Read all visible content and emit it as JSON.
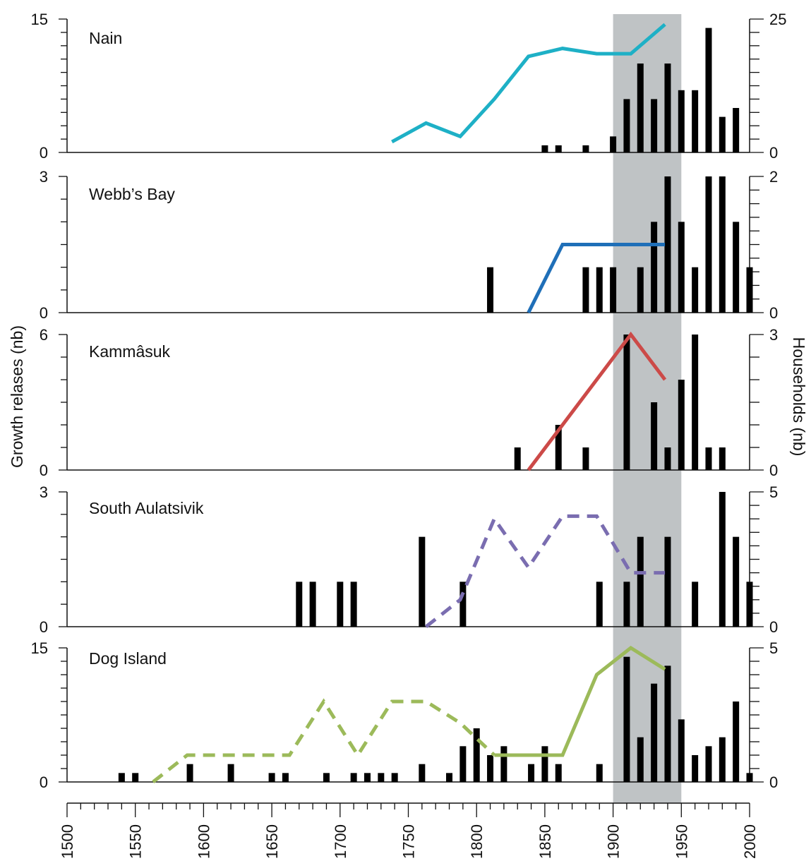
{
  "chart_data": {
    "type": "bar",
    "ylabel_left": "Growth relases (nb)",
    "ylabel_right": "Households (nb)",
    "x_ticks": [
      1500,
      1550,
      1600,
      1650,
      1700,
      1750,
      1800,
      1850,
      1900,
      1950,
      2000
    ],
    "xlim": [
      1500,
      2000
    ],
    "highlight_range": [
      1900,
      1950
    ],
    "highlight_color": "#bfc3c5",
    "panels": [
      {
        "title": "Nain",
        "left_ylim": [
          0,
          15
        ],
        "right_ylim": [
          0,
          25
        ],
        "left_minor_step": 1.5,
        "right_minor_step": 2.5,
        "bars": {
          "x": [
            1850,
            1860,
            1880,
            1900,
            1910,
            1920,
            1930,
            1940,
            1950,
            1960,
            1970,
            1980,
            1990
          ],
          "values": [
            0.8,
            0.8,
            0.8,
            1.8,
            6,
            10,
            6,
            10,
            7,
            7,
            14,
            4,
            5
          ]
        },
        "series": [
          {
            "color": "#1eb0c6",
            "dashed": false,
            "x": [
              1738,
              1763,
              1788,
              1813,
              1838,
              1863,
              1888,
              1913,
              1938
            ],
            "values": [
              2,
              5.5,
              3,
              10,
              18,
              19.5,
              18.5,
              18.5,
              24
            ]
          }
        ]
      },
      {
        "title": "Webb’s Bay",
        "left_ylim": [
          0,
          3
        ],
        "right_ylim": [
          0,
          2
        ],
        "left_minor_step": 0.5,
        "right_minor_step": 0.2,
        "bars": {
          "x": [
            1810,
            1880,
            1890,
            1900,
            1920,
            1930,
            1940,
            1950,
            1960,
            1970,
            1980,
            1990,
            2000
          ],
          "values": [
            1,
            1,
            1,
            1,
            1,
            2,
            3,
            2,
            1,
            3,
            3,
            2,
            1
          ]
        },
        "series": [
          {
            "color": "#1f6fb8",
            "dashed": false,
            "x": [
              1838,
              1863,
              1938
            ],
            "values": [
              0,
              1,
              1
            ]
          }
        ]
      },
      {
        "title": "Kammâsuk",
        "left_ylim": [
          0,
          6
        ],
        "right_ylim": [
          0,
          3
        ],
        "left_minor_step": 1,
        "right_minor_step": 0.5,
        "bars": {
          "x": [
            1830,
            1860,
            1880,
            1910,
            1930,
            1940,
            1950,
            1960,
            1970,
            1980
          ],
          "values": [
            1,
            2,
            1,
            6,
            3,
            1,
            4,
            6,
            1,
            1
          ]
        },
        "series": [
          {
            "color": "#cc4a48",
            "dashed": false,
            "x": [
              1838,
              1913,
              1938
            ],
            "values": [
              0,
              3,
              2
            ]
          }
        ]
      },
      {
        "title": "South Aulatsivik",
        "left_ylim": [
          0,
          3
        ],
        "right_ylim": [
          0,
          5
        ],
        "left_minor_step": 0.5,
        "right_minor_step": 0.5,
        "bars": {
          "x": [
            1670,
            1680,
            1700,
            1710,
            1760,
            1790,
            1890,
            1910,
            1920,
            1940,
            1960,
            1980,
            1990,
            2000
          ],
          "values": [
            1,
            1,
            1,
            1,
            2,
            1,
            1,
            1,
            2,
            2,
            1,
            3,
            2,
            1
          ]
        },
        "series": [
          {
            "color": "#7a6db0",
            "dashed": true,
            "x": [
              1763,
              1788,
              1813,
              1838,
              1863,
              1888,
              1913,
              1938
            ],
            "values": [
              0,
              1,
              4,
              2.2,
              4.1,
              4.1,
              2,
              2
            ]
          }
        ]
      },
      {
        "title": "Dog Island",
        "left_ylim": [
          0,
          15
        ],
        "right_ylim": [
          0,
          5
        ],
        "left_minor_step": 1.5,
        "right_minor_step": 0.5,
        "bars": {
          "x": [
            1540,
            1550,
            1590,
            1620,
            1650,
            1660,
            1690,
            1710,
            1720,
            1730,
            1740,
            1760,
            1780,
            1790,
            1800,
            1810,
            1820,
            1840,
            1850,
            1860,
            1890,
            1910,
            1920,
            1930,
            1940,
            1950,
            1960,
            1970,
            1980,
            1990,
            2000
          ],
          "values": [
            1,
            1,
            2,
            2,
            1,
            1,
            1,
            1,
            1,
            1,
            1,
            2,
            1,
            4,
            6,
            3,
            4,
            2,
            4,
            2,
            2,
            14,
            5,
            11,
            13,
            7,
            3,
            4,
            5,
            9,
            1
          ]
        },
        "series": [
          {
            "color": "#9cba5a",
            "dashed": true,
            "x": [
              1563,
              1588,
              1613,
              1638,
              1663,
              1688,
              1713,
              1738,
              1763,
              1788,
              1813
            ],
            "values": [
              0,
              1,
              1,
              1,
              1,
              3,
              1,
              3,
              3,
              2.2,
              1
            ]
          },
          {
            "color": "#9cba5a",
            "dashed": false,
            "x": [
              1813,
              1838,
              1863,
              1888,
              1913,
              1938
            ],
            "values": [
              1,
              1,
              1,
              4,
              5,
              4.2
            ]
          }
        ]
      }
    ]
  }
}
